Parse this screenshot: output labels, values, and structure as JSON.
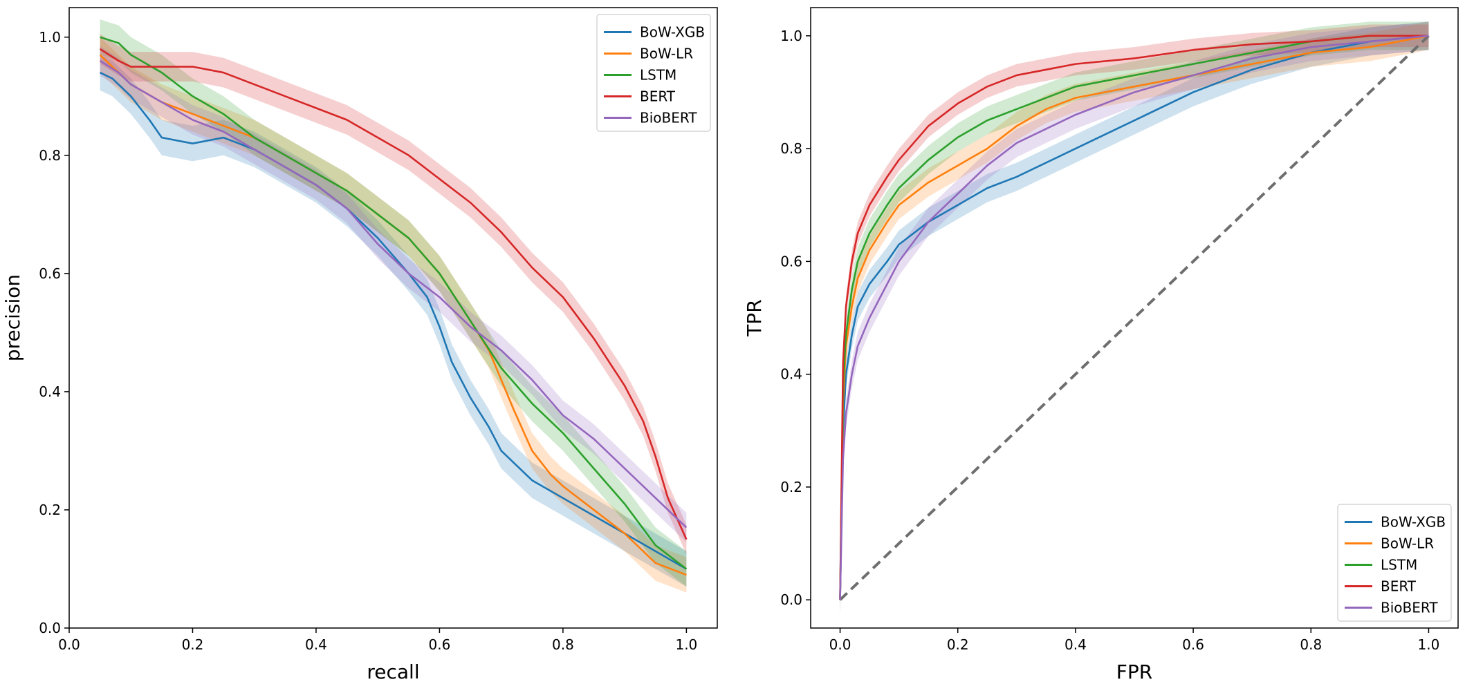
{
  "figure": {
    "layout": "two panels side by side"
  },
  "colors": {
    "BoW-XGB": "#1f77b4",
    "BoW-LR": "#ff7f0e",
    "LSTM": "#2ca02c",
    "BERT": "#d62728",
    "BioBERT": "#9467bd",
    "diagonal": "#6e6e6e"
  },
  "chart_data": [
    {
      "id": "pr",
      "type": "line",
      "title": "",
      "xlabel": "recall",
      "ylabel": "precision",
      "xlim": [
        0.0,
        1.05
      ],
      "ylim": [
        0.0,
        1.05
      ],
      "xticks": [
        0.0,
        0.2,
        0.4,
        0.6,
        0.8,
        1.0
      ],
      "xtick_labels": [
        "0.0",
        "0.2",
        "0.4",
        "0.6",
        "0.8",
        "1.0"
      ],
      "yticks": [
        0.0,
        0.2,
        0.4,
        0.6,
        0.8,
        1.0
      ],
      "ytick_labels": [
        "0.0",
        "0.2",
        "0.4",
        "0.6",
        "0.8",
        "1.0"
      ],
      "grid": false,
      "legend": "upper right",
      "series": [
        {
          "name": "BoW-XGB",
          "x": [
            0.05,
            0.07,
            0.1,
            0.13,
            0.15,
            0.2,
            0.25,
            0.3,
            0.35,
            0.4,
            0.45,
            0.5,
            0.55,
            0.58,
            0.6,
            0.62,
            0.65,
            0.68,
            0.7,
            0.72,
            0.75,
            0.8,
            0.85,
            0.9,
            0.95,
            1.0
          ],
          "y": [
            0.94,
            0.93,
            0.9,
            0.86,
            0.83,
            0.82,
            0.83,
            0.81,
            0.78,
            0.75,
            0.71,
            0.66,
            0.6,
            0.56,
            0.51,
            0.45,
            0.39,
            0.34,
            0.3,
            0.28,
            0.25,
            0.22,
            0.19,
            0.16,
            0.13,
            0.1
          ],
          "band": 0.03
        },
        {
          "name": "BoW-LR",
          "x": [
            0.05,
            0.07,
            0.1,
            0.15,
            0.2,
            0.25,
            0.3,
            0.35,
            0.4,
            0.45,
            0.5,
            0.55,
            0.6,
            0.65,
            0.68,
            0.7,
            0.72,
            0.75,
            0.78,
            0.8,
            0.85,
            0.9,
            0.93,
            0.95,
            1.0
          ],
          "y": [
            0.97,
            0.95,
            0.92,
            0.89,
            0.87,
            0.85,
            0.83,
            0.8,
            0.77,
            0.74,
            0.7,
            0.66,
            0.6,
            0.52,
            0.47,
            0.42,
            0.37,
            0.3,
            0.26,
            0.24,
            0.2,
            0.16,
            0.13,
            0.11,
            0.09
          ],
          "band": 0.03
        },
        {
          "name": "LSTM",
          "x": [
            0.05,
            0.08,
            0.1,
            0.15,
            0.2,
            0.25,
            0.3,
            0.35,
            0.4,
            0.45,
            0.5,
            0.55,
            0.6,
            0.65,
            0.7,
            0.75,
            0.8,
            0.85,
            0.9,
            0.95,
            1.0
          ],
          "y": [
            1.0,
            0.99,
            0.97,
            0.94,
            0.9,
            0.87,
            0.83,
            0.8,
            0.77,
            0.74,
            0.7,
            0.66,
            0.6,
            0.52,
            0.44,
            0.38,
            0.33,
            0.27,
            0.21,
            0.14,
            0.1
          ],
          "band": 0.03
        },
        {
          "name": "BERT",
          "x": [
            0.05,
            0.08,
            0.1,
            0.15,
            0.2,
            0.25,
            0.3,
            0.35,
            0.4,
            0.45,
            0.5,
            0.55,
            0.6,
            0.65,
            0.7,
            0.75,
            0.8,
            0.85,
            0.9,
            0.93,
            0.95,
            0.97,
            1.0
          ],
          "y": [
            0.98,
            0.96,
            0.95,
            0.95,
            0.95,
            0.94,
            0.92,
            0.9,
            0.88,
            0.86,
            0.83,
            0.8,
            0.76,
            0.72,
            0.67,
            0.61,
            0.56,
            0.49,
            0.41,
            0.35,
            0.29,
            0.22,
            0.15
          ],
          "band": 0.025
        },
        {
          "name": "BioBERT",
          "x": [
            0.05,
            0.08,
            0.1,
            0.15,
            0.2,
            0.25,
            0.3,
            0.35,
            0.4,
            0.45,
            0.5,
            0.55,
            0.6,
            0.65,
            0.7,
            0.75,
            0.8,
            0.85,
            0.9,
            0.95,
            1.0
          ],
          "y": [
            0.96,
            0.94,
            0.92,
            0.89,
            0.86,
            0.84,
            0.81,
            0.78,
            0.75,
            0.71,
            0.65,
            0.6,
            0.56,
            0.51,
            0.47,
            0.42,
            0.36,
            0.32,
            0.27,
            0.22,
            0.17
          ],
          "band": 0.025
        }
      ]
    },
    {
      "id": "roc",
      "type": "line",
      "title": "",
      "xlabel": "FPR",
      "ylabel": "TPR",
      "xlim": [
        -0.05,
        1.05
      ],
      "ylim": [
        -0.05,
        1.05
      ],
      "xticks": [
        0.0,
        0.2,
        0.4,
        0.6,
        0.8,
        1.0
      ],
      "xtick_labels": [
        "0.0",
        "0.2",
        "0.4",
        "0.6",
        "0.8",
        "1.0"
      ],
      "yticks": [
        0.0,
        0.2,
        0.4,
        0.6,
        0.8,
        1.0
      ],
      "ytick_labels": [
        "0.0",
        "0.2",
        "0.4",
        "0.6",
        "0.8",
        "1.0"
      ],
      "grid": false,
      "legend": "lower right",
      "diagonal": {
        "x": [
          0.0,
          1.0
        ],
        "y": [
          0.0,
          1.0
        ],
        "style": "dashed"
      },
      "series": [
        {
          "name": "BoW-XGB",
          "x": [
            0.0,
            0.005,
            0.01,
            0.02,
            0.03,
            0.05,
            0.08,
            0.1,
            0.15,
            0.2,
            0.25,
            0.3,
            0.4,
            0.5,
            0.6,
            0.7,
            0.8,
            0.9,
            1.0
          ],
          "y": [
            0.0,
            0.3,
            0.4,
            0.47,
            0.52,
            0.56,
            0.6,
            0.63,
            0.67,
            0.7,
            0.73,
            0.75,
            0.8,
            0.85,
            0.9,
            0.94,
            0.97,
            0.99,
            1.0
          ],
          "band": 0.025
        },
        {
          "name": "BoW-LR",
          "x": [
            0.0,
            0.005,
            0.01,
            0.02,
            0.03,
            0.05,
            0.08,
            0.1,
            0.15,
            0.2,
            0.25,
            0.3,
            0.35,
            0.4,
            0.5,
            0.6,
            0.7,
            0.8,
            0.9,
            1.0
          ],
          "y": [
            0.0,
            0.35,
            0.45,
            0.52,
            0.57,
            0.62,
            0.67,
            0.7,
            0.74,
            0.77,
            0.8,
            0.84,
            0.87,
            0.89,
            0.91,
            0.93,
            0.95,
            0.97,
            0.98,
            1.0
          ],
          "band": 0.025
        },
        {
          "name": "LSTM",
          "x": [
            0.0,
            0.005,
            0.01,
            0.02,
            0.03,
            0.05,
            0.08,
            0.1,
            0.15,
            0.2,
            0.25,
            0.3,
            0.4,
            0.5,
            0.6,
            0.7,
            0.8,
            0.9,
            1.0
          ],
          "y": [
            0.0,
            0.38,
            0.47,
            0.55,
            0.6,
            0.65,
            0.7,
            0.73,
            0.78,
            0.82,
            0.85,
            0.87,
            0.91,
            0.93,
            0.95,
            0.97,
            0.99,
            1.0,
            1.0
          ],
          "band": 0.025
        },
        {
          "name": "BERT",
          "x": [
            0.0,
            0.005,
            0.01,
            0.02,
            0.03,
            0.05,
            0.08,
            0.1,
            0.15,
            0.2,
            0.25,
            0.3,
            0.4,
            0.5,
            0.6,
            0.7,
            0.8,
            0.9,
            1.0
          ],
          "y": [
            0.0,
            0.42,
            0.52,
            0.6,
            0.65,
            0.7,
            0.75,
            0.78,
            0.84,
            0.88,
            0.91,
            0.93,
            0.95,
            0.96,
            0.975,
            0.985,
            0.99,
            1.0,
            1.0
          ],
          "band": 0.02
        },
        {
          "name": "BioBERT",
          "x": [
            0.0,
            0.005,
            0.01,
            0.02,
            0.03,
            0.05,
            0.08,
            0.1,
            0.15,
            0.2,
            0.25,
            0.3,
            0.4,
            0.5,
            0.6,
            0.7,
            0.8,
            0.9,
            1.0
          ],
          "y": [
            0.0,
            0.25,
            0.33,
            0.4,
            0.45,
            0.5,
            0.56,
            0.6,
            0.67,
            0.72,
            0.77,
            0.81,
            0.86,
            0.9,
            0.93,
            0.96,
            0.98,
            0.99,
            1.0
          ],
          "band": 0.025
        }
      ]
    }
  ]
}
